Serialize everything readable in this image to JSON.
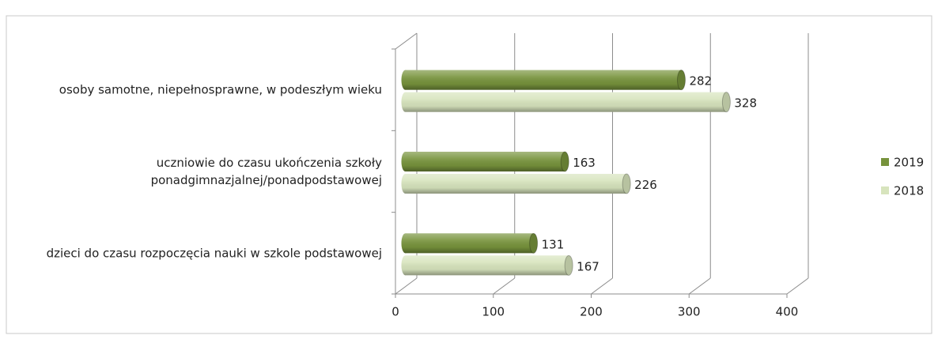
{
  "chart_data": {
    "type": "bar",
    "categories": [
      "osoby samotne, niepełnosprawne, w podeszłym wieku",
      "uczniowie do czasu ukończenia szkoły\nponadgimnazjalnej/ponadpodstawowej",
      "dzieci do czasu rozpoczęcia nauki w szkole podstawowej"
    ],
    "series": [
      {
        "name": "2019",
        "color": "#77933c",
        "values": [
          282,
          163,
          131
        ]
      },
      {
        "name": "2018",
        "color": "#d7e4bd",
        "values": [
          328,
          226,
          167
        ]
      }
    ],
    "xlim": [
      0,
      400
    ],
    "xticks": [
      0,
      100,
      200,
      300,
      400
    ],
    "grid": true,
    "legend": "right"
  }
}
